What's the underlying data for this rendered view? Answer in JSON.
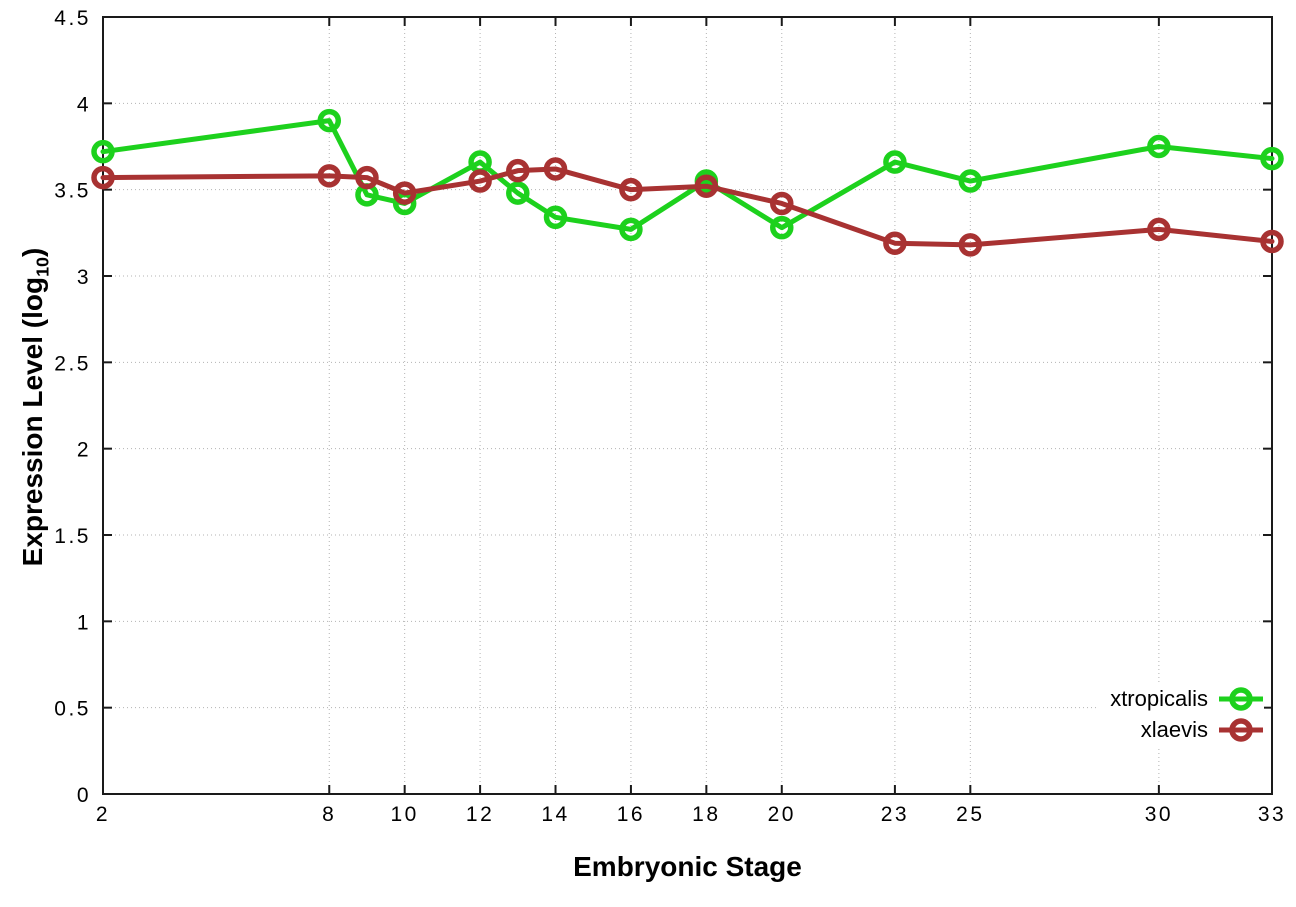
{
  "chart_data": {
    "type": "line",
    "title": "",
    "xlabel": "Embryonic Stage",
    "ylabel": "Expression Level (log10)",
    "ylabel_parts": {
      "pre": "Expression Level (log",
      "sub": "10",
      "post": ")"
    },
    "x": [
      2,
      8,
      9,
      10,
      12,
      13,
      14,
      16,
      18,
      20,
      23,
      25,
      30,
      33
    ],
    "series": [
      {
        "name": "xtropicalis",
        "color": "#1dd11d",
        "values": [
          3.72,
          3.9,
          3.47,
          3.42,
          3.66,
          3.48,
          3.34,
          3.27,
          3.55,
          3.28,
          3.66,
          3.55,
          3.75,
          3.68
        ]
      },
      {
        "name": "xlaevis",
        "color": "#a83232",
        "values": [
          3.57,
          3.58,
          3.57,
          3.48,
          3.55,
          3.61,
          3.62,
          3.5,
          3.52,
          3.42,
          3.19,
          3.18,
          3.27,
          3.2
        ]
      }
    ],
    "xlim": [
      2,
      33
    ],
    "ylim": [
      0,
      4.5
    ],
    "xticks": [
      2,
      8,
      10,
      12,
      14,
      16,
      18,
      20,
      23,
      25,
      30,
      33
    ],
    "yticks": [
      0,
      0.5,
      1,
      1.5,
      2,
      2.5,
      3,
      3.5,
      4,
      4.5
    ],
    "grid": true,
    "grid_style": "dotted",
    "grid_color": "#b3b3b3",
    "axis_color": "#1a1a1a",
    "legend_position": "inside-bottom-right"
  }
}
